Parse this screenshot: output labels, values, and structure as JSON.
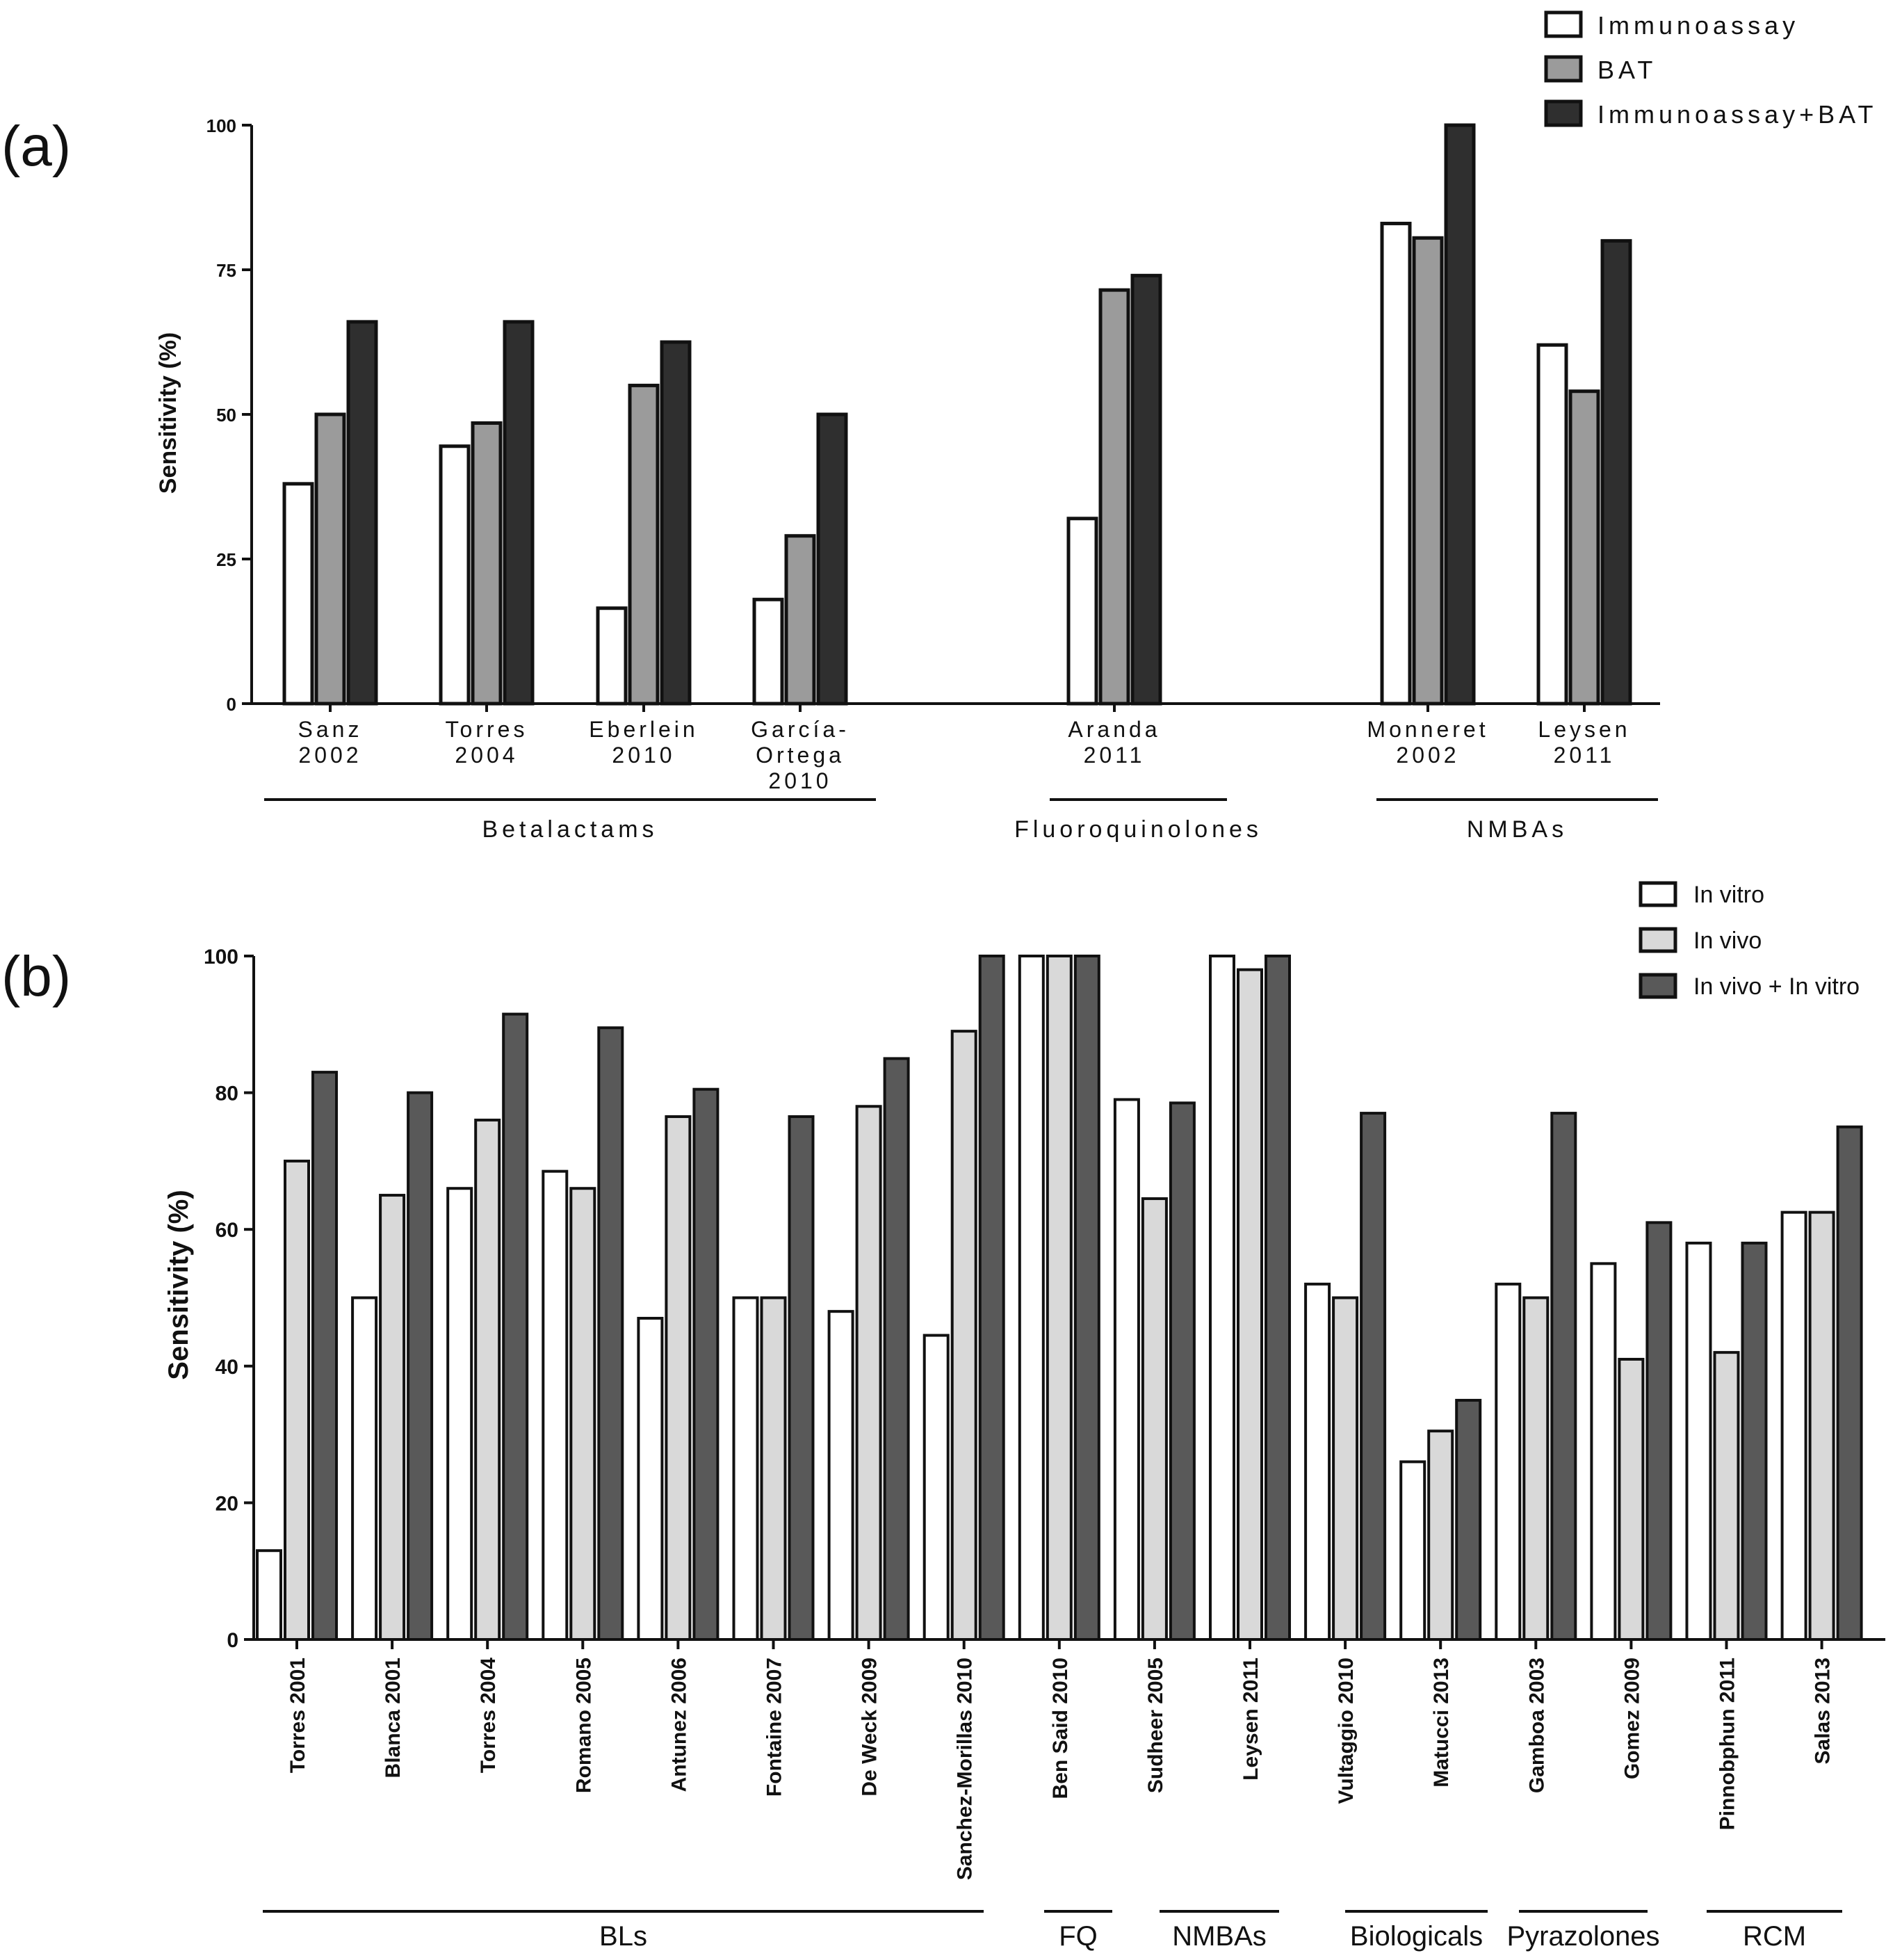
{
  "chart_data": [
    {
      "panel_label": "(a)",
      "type": "bar",
      "ylabel": "Sensitivity (%)",
      "ylim": [
        0,
        100
      ],
      "yticks": [
        "0",
        "25",
        "50",
        "75",
        "100"
      ],
      "legend_position": "top-right",
      "categories": [
        [
          "Sanz",
          "2002"
        ],
        [
          "Torres",
          "2004"
        ],
        [
          "Eberlein",
          "2010"
        ],
        [
          "García-",
          "Ortega",
          "2010"
        ],
        [
          "Aranda",
          "2011"
        ],
        [
          "Monneret",
          "2002"
        ],
        [
          "Leysen",
          "2011"
        ]
      ],
      "series": [
        {
          "name": "Immunoassay",
          "color": "#ffffff",
          "values": [
            38,
            44.5,
            16.5,
            18,
            32,
            83,
            62
          ]
        },
        {
          "name": "BAT",
          "color": "#9b9b9b",
          "values": [
            50,
            48.5,
            55,
            29,
            71.5,
            80.5,
            54
          ]
        },
        {
          "name": "Immunoassay+BAT",
          "color": "#2f2f2f",
          "values": [
            66,
            66,
            62.5,
            50,
            74,
            100,
            80
          ]
        }
      ],
      "groups": [
        {
          "label": "Betalactams",
          "from": 0,
          "to": 3
        },
        {
          "label": "Fluoroquinolones",
          "from": 4,
          "to": 4
        },
        {
          "label": "NMBAs",
          "from": 5,
          "to": 6
        }
      ]
    },
    {
      "panel_label": "(b)",
      "type": "bar",
      "ylabel": "Sensitivity (%)",
      "ylim": [
        0,
        100
      ],
      "yticks": [
        "0",
        "20",
        "40",
        "60",
        "80",
        "100"
      ],
      "legend_position": "top-right",
      "categories": [
        "Torres 2001",
        "Blanca 2001",
        "Torres 2004",
        "Romano 2005",
        "Antunez 2006",
        "Fontaine 2007",
        "De Weck 2009",
        "Sanchez-Morillas 2010",
        "Ben Said 2010",
        "Sudheer 2005",
        "Leysen 2011",
        "Vultaggio 2010",
        "Matucci 2013",
        "Gamboa 2003",
        "Gomez 2009",
        "Pinnobphun 2011",
        "Salas 2013"
      ],
      "series": [
        {
          "name": "In vitro",
          "color": "#ffffff",
          "values": [
            13,
            50,
            66,
            68.5,
            47,
            50,
            48,
            44.5,
            100,
            79,
            100,
            52,
            26,
            52,
            55,
            58,
            62.5
          ]
        },
        {
          "name": "In vivo",
          "color": "#d9d9d9",
          "values": [
            70,
            65,
            76,
            66,
            76.5,
            50,
            78,
            89,
            100,
            64.5,
            98,
            50,
            30.5,
            50,
            41,
            42,
            62.5
          ]
        },
        {
          "name": "In vivo + In vitro",
          "color": "#595959",
          "values": [
            83,
            80,
            91.5,
            89.5,
            80.5,
            76.5,
            85,
            100,
            100,
            78.5,
            100,
            77,
            35,
            77,
            61,
            58,
            75
          ]
        }
      ],
      "groups": [
        {
          "label": "BLs",
          "from": 0,
          "to": 7
        },
        {
          "label": "FQ",
          "from": 8,
          "to": 8
        },
        {
          "label": "NMBAs",
          "from": 9,
          "to": 10
        },
        {
          "label": "Biologicals",
          "from": 11,
          "to": 12
        },
        {
          "label": "Pyrazolones",
          "from": 13,
          "to": 14
        },
        {
          "label": "RCM",
          "from": 15,
          "to": 16
        }
      ]
    }
  ]
}
